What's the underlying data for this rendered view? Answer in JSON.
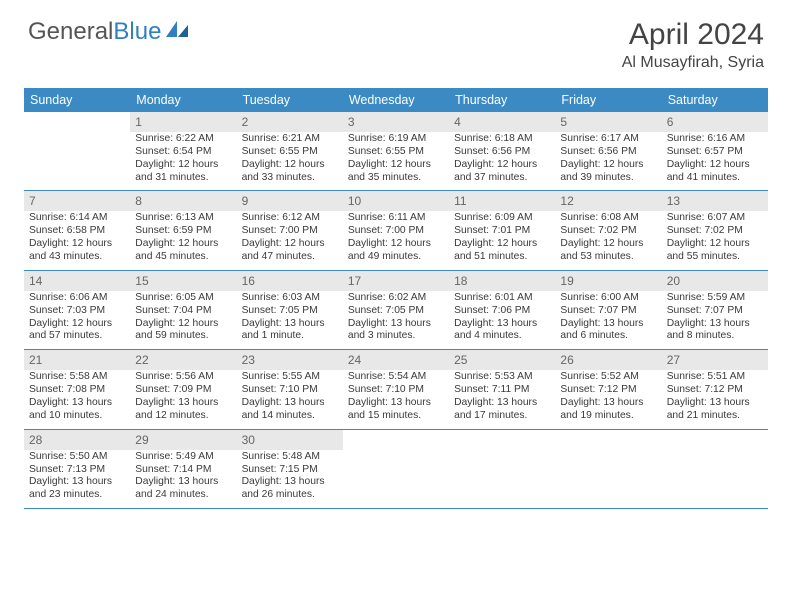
{
  "brand": {
    "part1": "General",
    "part2": "Blue"
  },
  "title": "April 2024",
  "location": "Al Musayfirah, Syria",
  "colors": {
    "header_bg": "#3b8ac4",
    "header_text": "#ffffff",
    "border": "#3b8ac4",
    "shade_bg": "#e8e8e8",
    "text": "#3a3a3a",
    "logo_gray": "#555555",
    "logo_blue": "#2f7fc1"
  },
  "dayNames": [
    "Sunday",
    "Monday",
    "Tuesday",
    "Wednesday",
    "Thursday",
    "Friday",
    "Saturday"
  ],
  "weeks": [
    [
      {
        "empty": true
      },
      {
        "n": "1",
        "sr": "6:22 AM",
        "ss": "6:54 PM",
        "dl": "12 hours and 31 minutes."
      },
      {
        "n": "2",
        "sr": "6:21 AM",
        "ss": "6:55 PM",
        "dl": "12 hours and 33 minutes."
      },
      {
        "n": "3",
        "sr": "6:19 AM",
        "ss": "6:55 PM",
        "dl": "12 hours and 35 minutes."
      },
      {
        "n": "4",
        "sr": "6:18 AM",
        "ss": "6:56 PM",
        "dl": "12 hours and 37 minutes."
      },
      {
        "n": "5",
        "sr": "6:17 AM",
        "ss": "6:56 PM",
        "dl": "12 hours and 39 minutes."
      },
      {
        "n": "6",
        "sr": "6:16 AM",
        "ss": "6:57 PM",
        "dl": "12 hours and 41 minutes."
      }
    ],
    [
      {
        "n": "7",
        "sr": "6:14 AM",
        "ss": "6:58 PM",
        "dl": "12 hours and 43 minutes."
      },
      {
        "n": "8",
        "sr": "6:13 AM",
        "ss": "6:59 PM",
        "dl": "12 hours and 45 minutes."
      },
      {
        "n": "9",
        "sr": "6:12 AM",
        "ss": "7:00 PM",
        "dl": "12 hours and 47 minutes."
      },
      {
        "n": "10",
        "sr": "6:11 AM",
        "ss": "7:00 PM",
        "dl": "12 hours and 49 minutes."
      },
      {
        "n": "11",
        "sr": "6:09 AM",
        "ss": "7:01 PM",
        "dl": "12 hours and 51 minutes."
      },
      {
        "n": "12",
        "sr": "6:08 AM",
        "ss": "7:02 PM",
        "dl": "12 hours and 53 minutes."
      },
      {
        "n": "13",
        "sr": "6:07 AM",
        "ss": "7:02 PM",
        "dl": "12 hours and 55 minutes."
      }
    ],
    [
      {
        "n": "14",
        "sr": "6:06 AM",
        "ss": "7:03 PM",
        "dl": "12 hours and 57 minutes."
      },
      {
        "n": "15",
        "sr": "6:05 AM",
        "ss": "7:04 PM",
        "dl": "12 hours and 59 minutes."
      },
      {
        "n": "16",
        "sr": "6:03 AM",
        "ss": "7:05 PM",
        "dl": "13 hours and 1 minute."
      },
      {
        "n": "17",
        "sr": "6:02 AM",
        "ss": "7:05 PM",
        "dl": "13 hours and 3 minutes."
      },
      {
        "n": "18",
        "sr": "6:01 AM",
        "ss": "7:06 PM",
        "dl": "13 hours and 4 minutes."
      },
      {
        "n": "19",
        "sr": "6:00 AM",
        "ss": "7:07 PM",
        "dl": "13 hours and 6 minutes."
      },
      {
        "n": "20",
        "sr": "5:59 AM",
        "ss": "7:07 PM",
        "dl": "13 hours and 8 minutes."
      }
    ],
    [
      {
        "n": "21",
        "sr": "5:58 AM",
        "ss": "7:08 PM",
        "dl": "13 hours and 10 minutes."
      },
      {
        "n": "22",
        "sr": "5:56 AM",
        "ss": "7:09 PM",
        "dl": "13 hours and 12 minutes."
      },
      {
        "n": "23",
        "sr": "5:55 AM",
        "ss": "7:10 PM",
        "dl": "13 hours and 14 minutes."
      },
      {
        "n": "24",
        "sr": "5:54 AM",
        "ss": "7:10 PM",
        "dl": "13 hours and 15 minutes."
      },
      {
        "n": "25",
        "sr": "5:53 AM",
        "ss": "7:11 PM",
        "dl": "13 hours and 17 minutes."
      },
      {
        "n": "26",
        "sr": "5:52 AM",
        "ss": "7:12 PM",
        "dl": "13 hours and 19 minutes."
      },
      {
        "n": "27",
        "sr": "5:51 AM",
        "ss": "7:12 PM",
        "dl": "13 hours and 21 minutes."
      }
    ],
    [
      {
        "n": "28",
        "sr": "5:50 AM",
        "ss": "7:13 PM",
        "dl": "13 hours and 23 minutes."
      },
      {
        "n": "29",
        "sr": "5:49 AM",
        "ss": "7:14 PM",
        "dl": "13 hours and 24 minutes."
      },
      {
        "n": "30",
        "sr": "5:48 AM",
        "ss": "7:15 PM",
        "dl": "13 hours and 26 minutes."
      },
      {
        "empty": true
      },
      {
        "empty": true
      },
      {
        "empty": true
      },
      {
        "empty": true
      }
    ]
  ],
  "labels": {
    "sunrise": "Sunrise:",
    "sunset": "Sunset:",
    "daylight": "Daylight:"
  }
}
